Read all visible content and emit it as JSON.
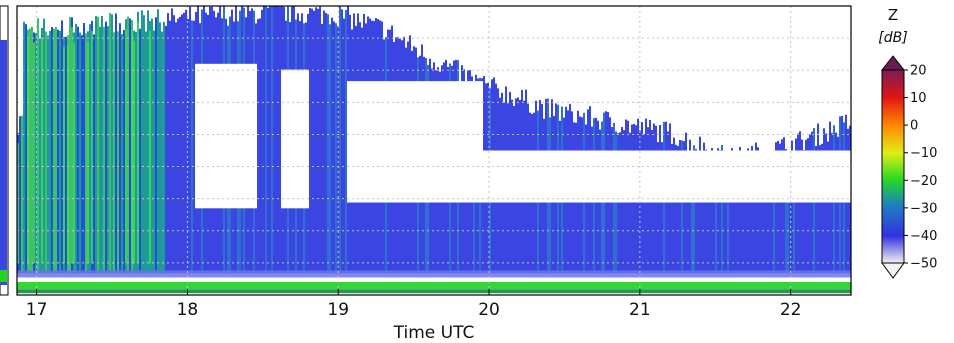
{
  "chart_data": {
    "type": "heatmap",
    "xlabel": "Time UTC",
    "x_ticks": [
      17,
      18,
      19,
      20,
      21,
      22
    ],
    "xlim": [
      16.87,
      22.4
    ],
    "grid": true,
    "colorbar": {
      "title": "Z",
      "unit": "[dB]",
      "ticks": [
        20,
        10,
        0,
        -10,
        -20,
        -30,
        -40,
        -50
      ],
      "range": [
        -50,
        20
      ],
      "extend": "both",
      "placement": "right"
    },
    "echo_top_profile": [
      {
        "t": 16.9,
        "z": 0.92
      },
      {
        "t": 17.3,
        "z": 0.93
      },
      {
        "t": 17.8,
        "z": 0.95
      },
      {
        "t": 18.2,
        "z": 0.97
      },
      {
        "t": 18.6,
        "z": 0.98
      },
      {
        "t": 19.0,
        "z": 0.97
      },
      {
        "t": 19.3,
        "z": 0.92
      },
      {
        "t": 19.6,
        "z": 0.82
      },
      {
        "t": 20.0,
        "z": 0.72
      },
      {
        "t": 20.4,
        "z": 0.64
      },
      {
        "t": 20.8,
        "z": 0.6
      },
      {
        "t": 21.2,
        "z": 0.56
      },
      {
        "t": 21.6,
        "z": 0.47
      },
      {
        "t": 22.0,
        "z": 0.52
      },
      {
        "t": 22.4,
        "z": 0.6
      }
    ]
  },
  "colors": {
    "cmap": [
      "#ececec",
      "#3a3ae6",
      "#1f7dc4",
      "#22dd22",
      "#d6ee1a",
      "#ff7f00",
      "#e01010",
      "#6a1a55"
    ],
    "grid": "#c4c4c4",
    "frame": "#000000"
  }
}
